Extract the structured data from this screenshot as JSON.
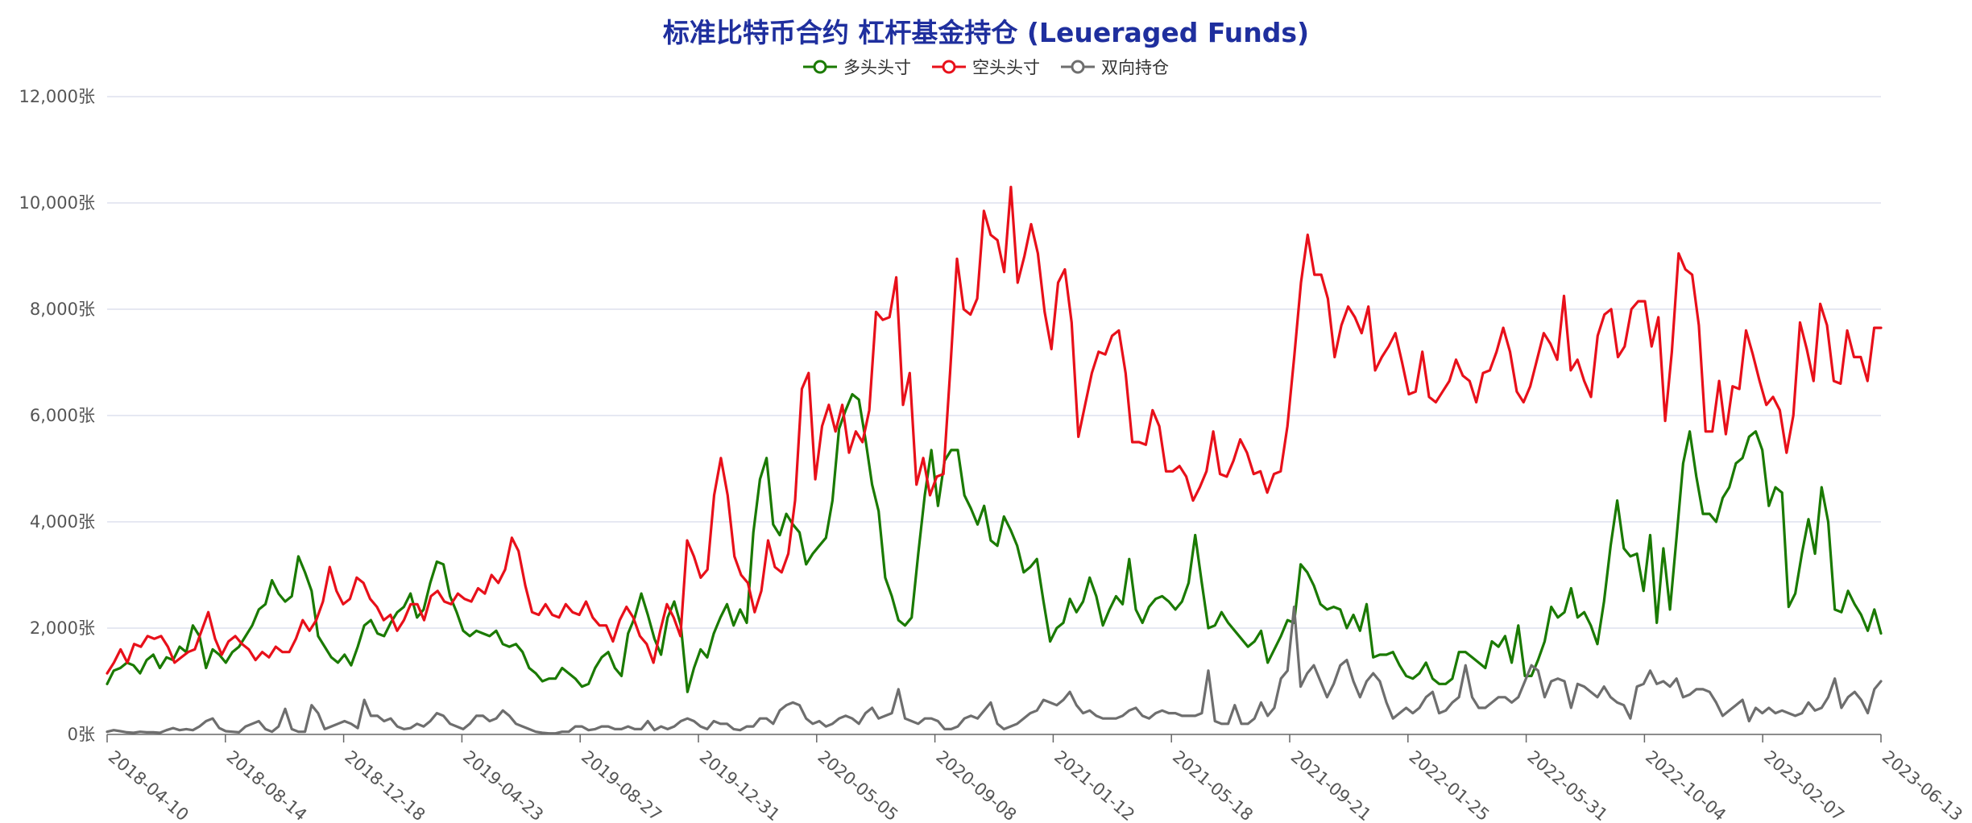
{
  "chart_data": {
    "type": "line",
    "title": "标准比特币合约 杠杆基金持仓 (Leueraged Funds)",
    "xlabel": "",
    "ylabel": "",
    "ylim": [
      0,
      12000
    ],
    "y_ticks": [
      "0张",
      "2,000张",
      "4,000张",
      "6,000张",
      "8,000张",
      "10,000张",
      "12,000张"
    ],
    "y_tick_values": [
      0,
      2000,
      4000,
      6000,
      8000,
      10000,
      12000
    ],
    "x_tick_labels": [
      "2018-04-10",
      "2018-08-14",
      "2018-12-18",
      "2019-04-23",
      "2019-08-27",
      "2019-12-31",
      "2020-05-05",
      "2020-09-08",
      "2021-01-12",
      "2021-05-18",
      "2021-09-21",
      "2022-01-25",
      "2022-05-31",
      "2022-10-04",
      "2023-02-07",
      "2023-06-13"
    ],
    "grid": true,
    "legend_position": "top",
    "series": [
      {
        "name": "多头头寸",
        "color": "#1a7a00",
        "values": [
          950,
          1200,
          1250,
          1350,
          1300,
          1150,
          1400,
          1500,
          1250,
          1450,
          1400,
          1650,
          1550,
          2050,
          1850,
          1250,
          1600,
          1500,
          1350,
          1550,
          1650,
          1850,
          2050,
          2350,
          2450,
          2900,
          2650,
          2500,
          2600,
          3350,
          3050,
          2700,
          1850,
          1650,
          1450,
          1350,
          1500,
          1300,
          1650,
          2050,
          2150,
          1900,
          1850,
          2100,
          2300,
          2400,
          2650,
          2200,
          2350,
          2850,
          3250,
          3200,
          2600,
          2300,
          1950,
          1850,
          1950,
          1900,
          1850,
          1950,
          1700,
          1650,
          1700,
          1550,
          1250,
          1150,
          1000,
          1050,
          1050,
          1250,
          1150,
          1050,
          900,
          950,
          1250,
          1450,
          1550,
          1250,
          1100,
          1900,
          2200,
          2650,
          2250,
          1800,
          1500,
          2200,
          2500,
          2050,
          800,
          1250,
          1600,
          1450,
          1900,
          2200,
          2450,
          2050,
          2350,
          2100,
          3800,
          4800,
          5200,
          3950,
          3750,
          4150,
          3950,
          3800,
          3200,
          3400,
          3550,
          3700,
          4400,
          5750,
          6100,
          6400,
          6300,
          5550,
          4700,
          4200,
          2950,
          2600,
          2150,
          2050,
          2200,
          3400,
          4500,
          5350,
          4300,
          5150,
          5350,
          5350,
          4500,
          4250,
          3950,
          4300,
          3650,
          3550,
          4100,
          3850,
          3550,
          3050,
          3150,
          3300,
          2500,
          1750,
          2000,
          2100,
          2550,
          2300,
          2500,
          2950,
          2600,
          2050,
          2350,
          2600,
          2450,
          3300,
          2350,
          2100,
          2400,
          2550,
          2600,
          2500,
          2350,
          2500,
          2850,
          3750,
          2850,
          2000,
          2050,
          2300,
          2100,
          1950,
          1800,
          1650,
          1750,
          1950,
          1350,
          1600,
          1850,
          2150,
          2100,
          3200,
          3050,
          2800,
          2450,
          2350,
          2400,
          2350,
          2000,
          2250,
          1950,
          2450,
          1450,
          1500,
          1500,
          1550,
          1300,
          1100,
          1050,
          1150,
          1350,
          1050,
          950,
          950,
          1050,
          1550,
          1550,
          1450,
          1350,
          1250,
          1750,
          1650,
          1850,
          1350,
          2050,
          1100,
          1100,
          1400,
          1750,
          2400,
          2200,
          2300,
          2750,
          2200,
          2300,
          2050,
          1700,
          2500,
          3550,
          4400,
          3500,
          3350,
          3400,
          2700,
          3750,
          2100,
          3500,
          2350,
          3700,
          5100,
          5700,
          4850,
          4150,
          4150,
          4000,
          4450,
          4650,
          5100,
          5200,
          5600,
          5700,
          5350,
          4300,
          4650,
          4550,
          2400,
          2650,
          3400,
          4050,
          3400,
          4650,
          4000,
          2350,
          2300,
          2700,
          2450,
          2250,
          1950,
          2350,
          1900
        ]
      },
      {
        "name": "空头头寸",
        "color": "#e8101a",
        "values": [
          1150,
          1350,
          1600,
          1350,
          1700,
          1650,
          1850,
          1800,
          1850,
          1650,
          1350,
          1450,
          1550,
          1600,
          1950,
          2300,
          1800,
          1500,
          1750,
          1850,
          1700,
          1600,
          1400,
          1550,
          1450,
          1650,
          1550,
          1550,
          1800,
          2150,
          1950,
          2150,
          2500,
          3150,
          2700,
          2450,
          2550,
          2950,
          2850,
          2550,
          2400,
          2150,
          2250,
          1950,
          2150,
          2450,
          2450,
          2150,
          2600,
          2700,
          2500,
          2450,
          2650,
          2550,
          2500,
          2750,
          2650,
          3000,
          2850,
          3100,
          3700,
          3450,
          2800,
          2300,
          2250,
          2450,
          2250,
          2200,
          2450,
          2300,
          2250,
          2500,
          2200,
          2050,
          2050,
          1750,
          2150,
          2400,
          2200,
          1850,
          1700,
          1350,
          1950,
          2450,
          2200,
          1850,
          3650,
          3350,
          2950,
          3100,
          4500,
          5200,
          4500,
          3350,
          3000,
          2850,
          2300,
          2700,
          3650,
          3150,
          3050,
          3400,
          4400,
          6500,
          6800,
          4800,
          5800,
          6200,
          5700,
          6200,
          5300,
          5700,
          5500,
          6100,
          7950,
          7800,
          7850,
          8600,
          6200,
          6800,
          4700,
          5200,
          4500,
          4850,
          4900,
          6850,
          8950,
          8000,
          7900,
          8200,
          9850,
          9400,
          9300,
          8700,
          10300,
          8500,
          9000,
          9600,
          9050,
          7950,
          7250,
          8500,
          8750,
          7750,
          5600,
          6200,
          6800,
          7200,
          7150,
          7500,
          7600,
          6800,
          5500,
          5500,
          5450,
          6100,
          5800,
          4950,
          4950,
          5050,
          4850,
          4400,
          4650,
          4950,
          5700,
          4900,
          4850,
          5150,
          5550,
          5300,
          4900,
          4950,
          4550,
          4900,
          4950,
          5800,
          7100,
          8500,
          9400,
          8650,
          8650,
          8200,
          7100,
          7700,
          8050,
          7850,
          7550,
          8050,
          6850,
          7100,
          7300,
          7550,
          7000,
          6400,
          6450,
          7200,
          6350,
          6250,
          6450,
          6650,
          7050,
          6750,
          6650,
          6250,
          6800,
          6850,
          7200,
          7650,
          7200,
          6450,
          6250,
          6550,
          7050,
          7550,
          7350,
          7050,
          8250,
          6850,
          7050,
          6650,
          6350,
          7500,
          7900,
          8000,
          7100,
          7300,
          8000,
          8150,
          8150,
          7300,
          7850,
          5900,
          7200,
          9050,
          8750,
          8650,
          7700,
          5700,
          5700,
          6650,
          5650,
          6550,
          6500,
          7600,
          7150,
          6650,
          6200,
          6350,
          6100,
          5300,
          6000,
          7750,
          7250,
          6650,
          8100,
          7700,
          6650,
          6600,
          7600,
          7100,
          7100,
          6650,
          7650,
          7650
        ]
      },
      {
        "name": "双向持仓",
        "color": "#6e6e6e",
        "values": [
          50,
          80,
          60,
          40,
          30,
          50,
          40,
          40,
          30,
          80,
          120,
          80,
          100,
          80,
          150,
          250,
          300,
          120,
          60,
          50,
          40,
          150,
          200,
          250,
          100,
          50,
          150,
          480,
          100,
          50,
          50,
          550,
          400,
          100,
          150,
          200,
          250,
          200,
          120,
          650,
          350,
          350,
          250,
          300,
          150,
          100,
          120,
          200,
          150,
          250,
          400,
          350,
          200,
          150,
          100,
          200,
          350,
          350,
          250,
          300,
          450,
          350,
          200,
          150,
          100,
          50,
          30,
          20,
          20,
          50,
          50,
          150,
          150,
          80,
          100,
          150,
          150,
          100,
          100,
          150,
          100,
          100,
          250,
          80,
          150,
          100,
          150,
          250,
          300,
          250,
          150,
          100,
          250,
          200,
          200,
          100,
          80,
          150,
          150,
          300,
          300,
          200,
          450,
          550,
          600,
          550,
          300,
          200,
          250,
          150,
          200,
          300,
          350,
          300,
          200,
          400,
          500,
          300,
          350,
          400,
          850,
          300,
          250,
          200,
          300,
          300,
          250,
          100,
          100,
          150,
          300,
          350,
          300,
          450,
          600,
          200,
          100,
          150,
          200,
          300,
          400,
          450,
          650,
          600,
          550,
          650,
          800,
          550,
          400,
          450,
          350,
          300,
          300,
          300,
          350,
          450,
          500,
          350,
          300,
          400,
          450,
          400,
          400,
          350,
          350,
          350,
          400,
          1200,
          250,
          200,
          200,
          550,
          200,
          200,
          300,
          600,
          350,
          500,
          1050,
          1200,
          2400,
          900,
          1150,
          1300,
          1000,
          700,
          950,
          1300,
          1400,
          1000,
          700,
          1000,
          1150,
          1000,
          600,
          300,
          400,
          500,
          400,
          500,
          700,
          800,
          400,
          450,
          600,
          700,
          1300,
          700,
          500,
          500,
          600,
          700,
          700,
          600,
          700,
          1000,
          1300,
          1200,
          700,
          1000,
          1050,
          1000,
          500,
          950,
          900,
          800,
          700,
          900,
          700,
          600,
          550,
          300,
          900,
          950,
          1200,
          950,
          1000,
          900,
          1050,
          700,
          750,
          850,
          850,
          800,
          600,
          350,
          450,
          550,
          650,
          250,
          500,
          400,
          500,
          400,
          450,
          400,
          350,
          400,
          600,
          450,
          500,
          700,
          1050,
          500,
          700,
          800,
          650,
          400,
          850,
          1000
        ]
      }
    ]
  }
}
